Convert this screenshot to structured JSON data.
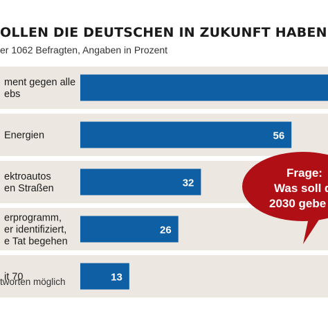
{
  "header": {
    "title": "OLLEN DIE DEUTSCHEN IN ZUKUNFT HABEN",
    "subtitle": "er 1062 Befragten, Angaben in Prozent"
  },
  "footnote": "tworten möglich",
  "bubble": {
    "lines": [
      "Frage:",
      "Was soll d",
      "2030 gebe"
    ]
  },
  "colors": {
    "bar": "#0e5fa4",
    "band": "#ece8e1",
    "bubble": "#b10f16"
  },
  "chart_data": {
    "type": "bar",
    "orientation": "horizontal",
    "categories": [
      [
        "ment gegen alle",
        "ebs"
      ],
      [
        "Energien"
      ],
      [
        "ektroautos",
        "en Straßen"
      ],
      [
        "erprogramm,",
        "er identifiziert,",
        "e Tat begehen"
      ],
      [
        "it 70"
      ]
    ],
    "values": [
      null,
      56,
      32,
      26,
      13
    ],
    "value_labels": [
      "",
      "56",
      "32",
      "26",
      "13"
    ],
    "xlim": [
      0,
      100
    ],
    "grid": false,
    "legend": "none"
  }
}
